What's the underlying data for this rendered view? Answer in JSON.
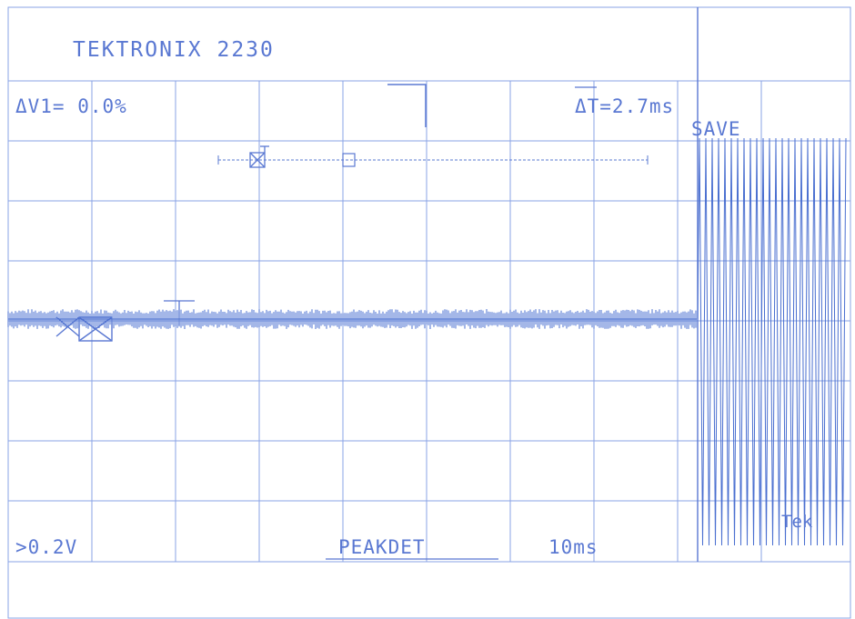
{
  "header": {
    "title": "TEKTRONIX 2230"
  },
  "readouts": {
    "delta_v": "ΔV1= 0.0%",
    "delta_t": "ΔT=2.7ms",
    "save": "SAVE",
    "volts_div": ">0.2V",
    "mode": "PEAKDET",
    "time_div": "10ms",
    "brand": "Tek"
  },
  "colors": {
    "trace": "#4a6fd0",
    "grid": "#8aa3e6",
    "text": "#5a78d2",
    "paper": "#ffffff"
  }
}
